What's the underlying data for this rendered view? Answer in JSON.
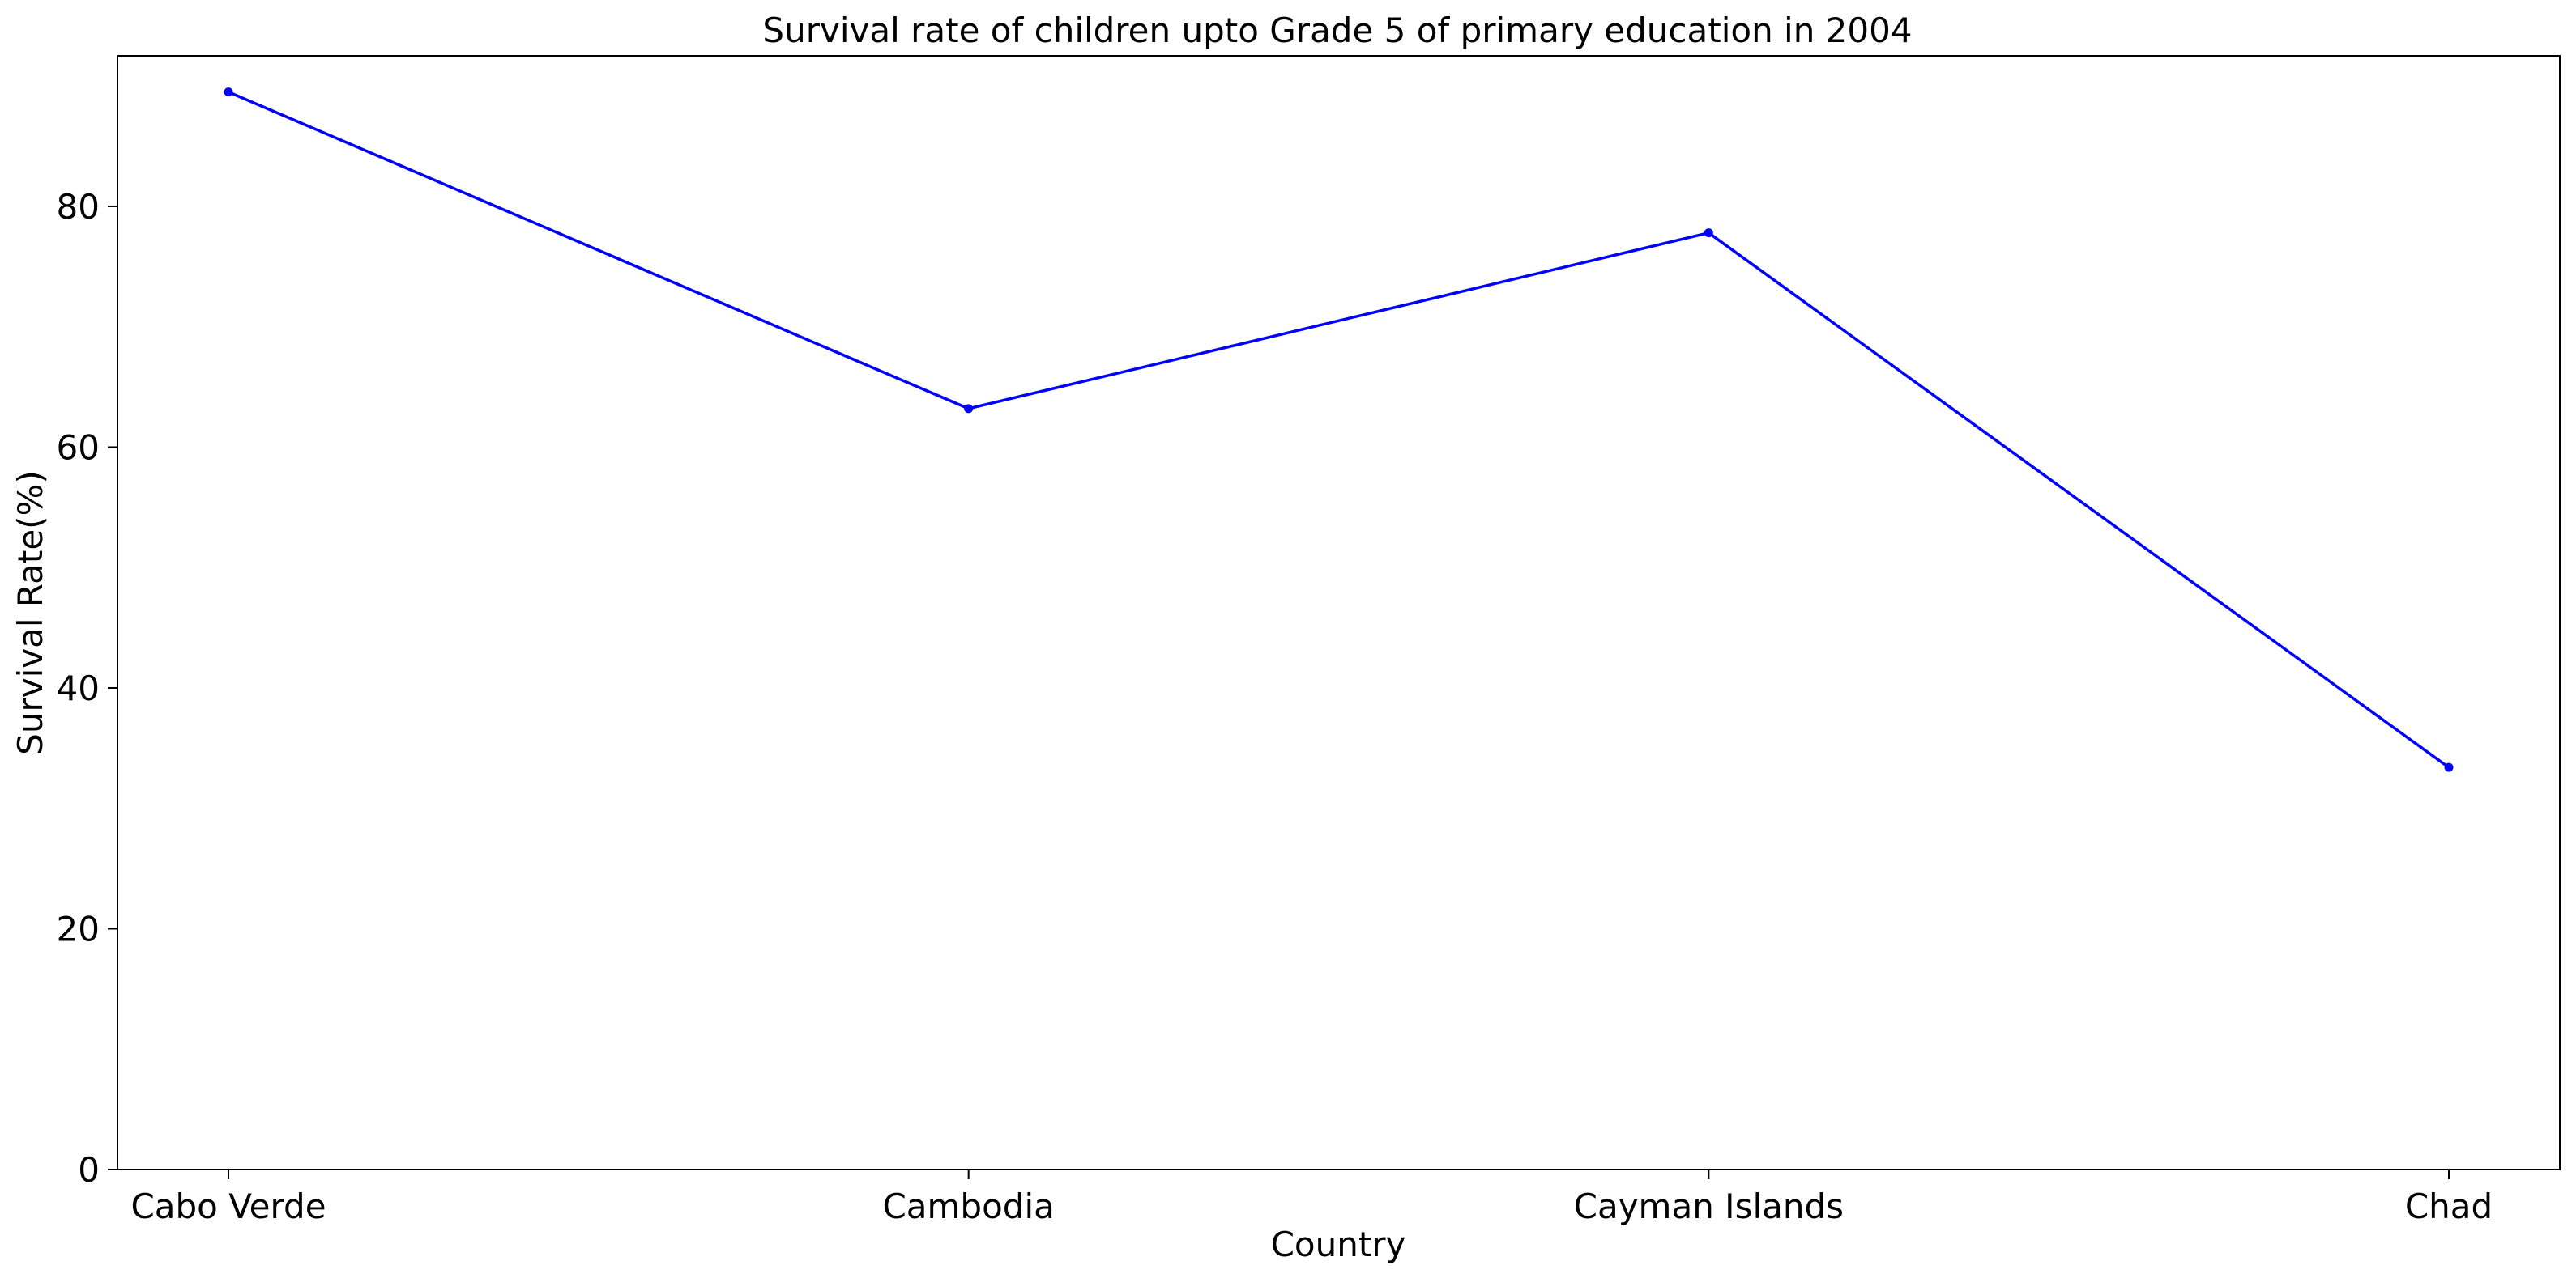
{
  "chart_data": {
    "type": "line",
    "title": "Survival rate of children upto Grade 5 of primary education in 2004",
    "xlabel": "Country",
    "ylabel": "Survival Rate(%)",
    "categories": [
      "Cabo Verde",
      "Cambodia",
      "Cayman Islands",
      "Chad"
    ],
    "series": [
      {
        "values": [
          89.5,
          63.2,
          77.8,
          33.4
        ]
      }
    ],
    "ylim": [
      0,
      92.5
    ],
    "yticks": [
      0,
      20,
      40,
      60,
      80
    ],
    "grid": false,
    "legend": "none",
    "colors": {
      "line": "#0000ff",
      "axes": "#000000",
      "background": "#ffffff"
    }
  }
}
